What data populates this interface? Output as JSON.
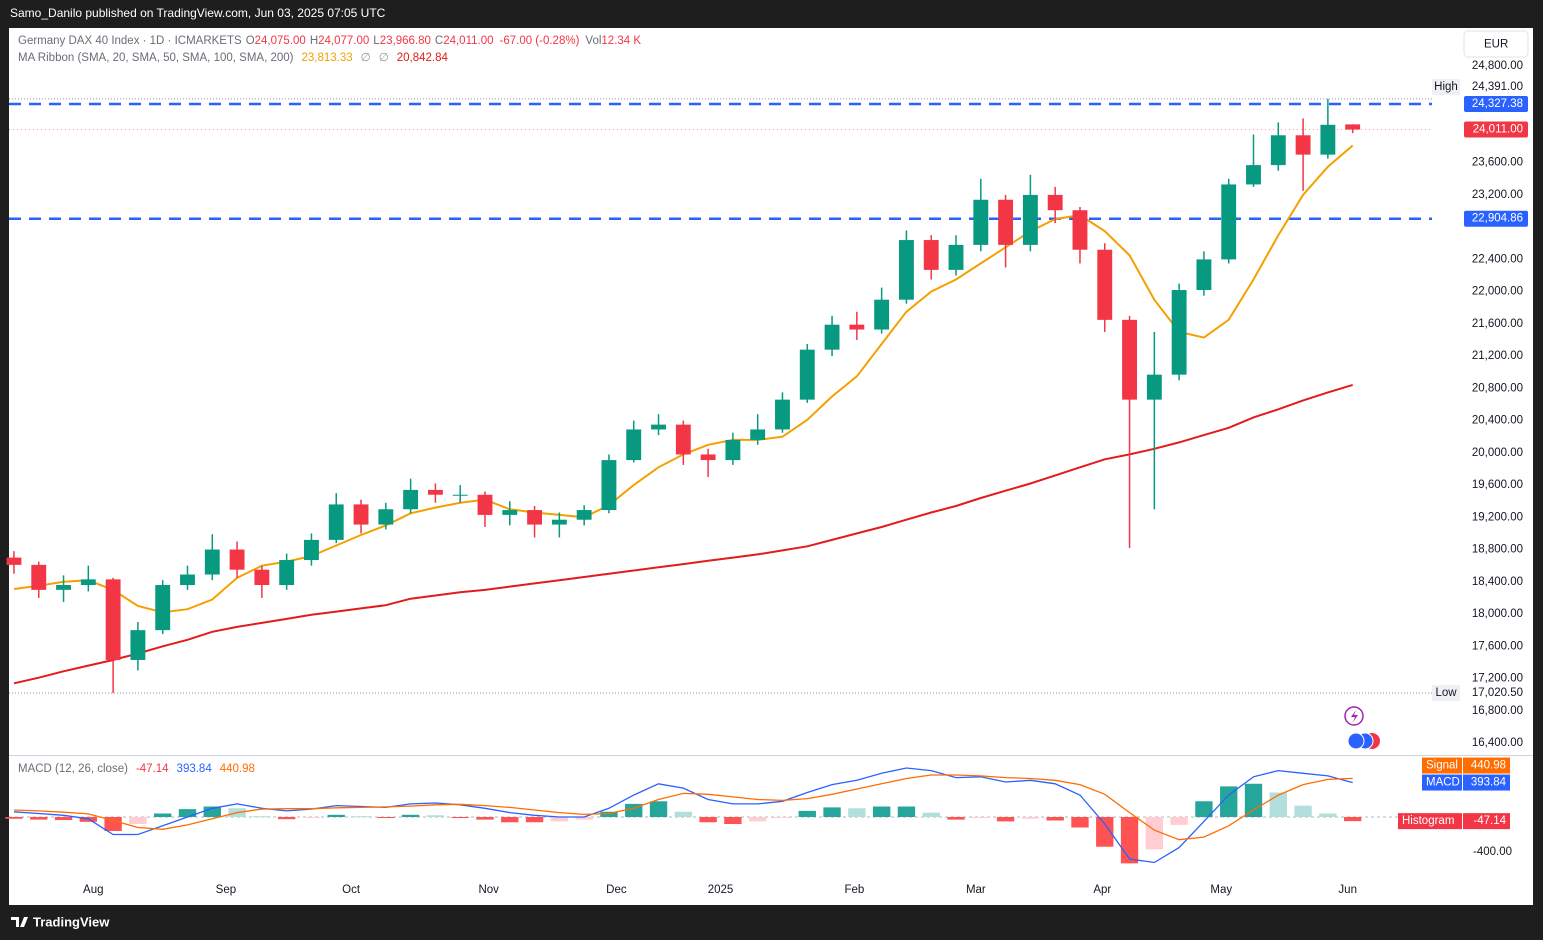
{
  "header": {
    "publisher": "Samo_Danilo published on TradingView.com, Jun 03, 2025 07:05 UTC",
    "footer": "TradingView",
    "currency": "EUR"
  },
  "chart_data": [
    {
      "type": "candlestick",
      "title": "Germany DAX 40 Index · 1D · ICMARKETS",
      "ohlc_legend": [
        {
          "key": "O",
          "value": "24,075.00"
        },
        {
          "key": "H",
          "value": "24,077.00"
        },
        {
          "key": "L",
          "value": "23,966.80"
        },
        {
          "key": "C",
          "value": "24,011.00"
        }
      ],
      "change": "-67.00 (-0.28%)",
      "volume": {
        "key": "Vol",
        "value": "12.34 K"
      },
      "up_color": "#089981",
      "down_color": "#f23645",
      "open": [
        18700,
        18610,
        18300,
        18360,
        18430,
        17430,
        17800,
        18360,
        18490,
        18800,
        18550,
        18360,
        18670,
        18920,
        19360,
        19110,
        19300,
        19540,
        19480,
        19480,
        19230,
        19290,
        19110,
        19170,
        19290,
        19910,
        20290,
        20350,
        19980,
        19910,
        20160,
        20290,
        20660,
        21280,
        21590,
        21530,
        21900,
        22640,
        22270,
        22580,
        23140,
        22580,
        23200,
        23010,
        22520,
        21650,
        20660,
        20970,
        22020,
        22400,
        23330,
        23570,
        23940,
        23700,
        24075
      ],
      "high": [
        18780,
        18650,
        18480,
        18600,
        18450,
        17900,
        18420,
        18600,
        18990,
        18900,
        18600,
        18750,
        19000,
        19500,
        19420,
        19380,
        19680,
        19620,
        19600,
        19520,
        19400,
        19340,
        19260,
        19350,
        19980,
        20400,
        20480,
        20400,
        20050,
        20250,
        20480,
        20750,
        21350,
        21700,
        21750,
        22050,
        22760,
        22700,
        22700,
        23400,
        23200,
        23450,
        23300,
        23050,
        22600,
        21700,
        21500,
        22100,
        22500,
        23400,
        23950,
        24100,
        24150,
        24391,
        24077
      ],
      "low": [
        18500,
        18200,
        18150,
        18280,
        17020,
        17300,
        17750,
        18300,
        18420,
        18450,
        18200,
        18300,
        18600,
        18880,
        19000,
        19050,
        19250,
        19380,
        19380,
        19080,
        19100,
        18950,
        18950,
        19100,
        19250,
        19880,
        20220,
        19850,
        19700,
        19850,
        20100,
        20250,
        20620,
        21200,
        21400,
        21480,
        21850,
        22150,
        22200,
        22500,
        22300,
        22500,
        22850,
        22350,
        21500,
        18820,
        19300,
        20900,
        21950,
        22350,
        23300,
        23500,
        23250,
        23650,
        23966.8
      ],
      "close": [
        18610,
        18300,
        18360,
        18430,
        17430,
        17800,
        18360,
        18490,
        18800,
        18550,
        18360,
        18670,
        18920,
        19360,
        19110,
        19300,
        19540,
        19480,
        19480,
        19230,
        19290,
        19110,
        19170,
        19290,
        19910,
        20290,
        20350,
        19980,
        19910,
        20160,
        20290,
        20660,
        21280,
        21590,
        21530,
        21900,
        22640,
        22270,
        22580,
        23140,
        22580,
        23200,
        23010,
        22520,
        21650,
        20660,
        20970,
        22020,
        22400,
        23330,
        23570,
        23940,
        23700,
        24070,
        24011
      ],
      "ma_ribbon": {
        "name": "MA Ribbon (SMA, 20, SMA, 50, SMA, 100, SMA, 200)",
        "value_labels": [
          "23,813.33",
          "∅",
          "∅",
          "20,842.84"
        ],
        "label_colors": [
          "#f5a000",
          "#9598a1",
          "#9598a1",
          "#e31b1b"
        ],
        "series": [
          {
            "color": "#f5a000",
            "values": [
              18310,
              18350,
              18400,
              18420,
              18300,
              18100,
              18020,
              18060,
              18180,
              18450,
              18600,
              18650,
              18720,
              18850,
              18980,
              19100,
              19250,
              19320,
              19380,
              19420,
              19300,
              19260,
              19230,
              19200,
              19350,
              19600,
              19820,
              19980,
              20100,
              20160,
              20160,
              20200,
              20410,
              20700,
              20950,
              21350,
              21750,
              22000,
              22150,
              22350,
              22550,
              22750,
              22900,
              22950,
              22750,
              22450,
              21900,
              21500,
              21430,
              21650,
              22150,
              22700,
              23200,
              23550,
              23813.33
            ]
          },
          {
            "color": "#e31b1b",
            "values": [
              17140,
              17210,
              17290,
              17360,
              17430,
              17510,
              17600,
              17680,
              17780,
              17840,
              17890,
              17940,
              17990,
              18030,
              18070,
              18110,
              18190,
              18230,
              18270,
              18300,
              18340,
              18380,
              18420,
              18460,
              18500,
              18540,
              18580,
              18620,
              18660,
              18700,
              18740,
              18790,
              18840,
              18920,
              19000,
              19080,
              19170,
              19260,
              19340,
              19440,
              19530,
              19620,
              19720,
              19820,
              19920,
              19980,
              20050,
              20130,
              20220,
              20310,
              20440,
              20540,
              20650,
              20750,
              20842.84
            ]
          }
        ]
      },
      "xlim": [
        -0.2,
        57.2
      ],
      "ylim": [
        16251,
        25271
      ],
      "yticks": [
        {
          "value": 24800,
          "label": "24,800.00"
        },
        {
          "value": 23600,
          "label": "23,600.00"
        },
        {
          "value": 23200,
          "label": "23,200.00"
        },
        {
          "value": 22400,
          "label": "22,400.00"
        },
        {
          "value": 22000,
          "label": "22,000.00"
        },
        {
          "value": 21600,
          "label": "21,600.00"
        },
        {
          "value": 21200,
          "label": "21,200.00"
        },
        {
          "value": 20800,
          "label": "20,800.00"
        },
        {
          "value": 20400,
          "label": "20,400.00"
        },
        {
          "value": 20000,
          "label": "20,000.00"
        },
        {
          "value": 19600,
          "label": "19,600.00"
        },
        {
          "value": 19200,
          "label": "19,200.00"
        },
        {
          "value": 18800,
          "label": "18,800.00"
        },
        {
          "value": 18400,
          "label": "18,400.00"
        },
        {
          "value": 18000,
          "label": "18,000.00"
        },
        {
          "value": 17600,
          "label": "17,600.00"
        },
        {
          "value": 17200,
          "label": "17,200.00"
        },
        {
          "value": 16800,
          "label": "16,800.00"
        },
        {
          "value": 16400,
          "label": "16,400.00"
        }
      ],
      "levels": [
        {
          "value": 24327.38,
          "label": "24,327.38",
          "color": "#2962ff"
        },
        {
          "value": 22904.86,
          "label": "22,904.86",
          "color": "#2962ff"
        }
      ],
      "last_price": {
        "value": 24011,
        "label": "24,011.00",
        "color": "#f23645"
      },
      "extremes": [
        {
          "name": "High",
          "value": 24391,
          "label": "24,391.00"
        },
        {
          "name": "Low",
          "value": 17020.5,
          "label": "17,020.50"
        }
      ]
    },
    {
      "type": "macd",
      "title": "MACD (12, 26, close)",
      "legend_value_labels": [
        "-47.14",
        "393.84",
        "440.98"
      ],
      "legend_colors": [
        "#f23645",
        "#2962ff",
        "#ff6d00"
      ],
      "hist_colors": {
        "up_rising": "#26a69a",
        "up_falling": "#b2dfdb",
        "down_falling": "#ff5252",
        "down_rising": "#ffcdd2"
      },
      "series": [
        {
          "name": "Histogram",
          "color": "#f23645",
          "value_label": "-47.14",
          "values": [
            -20,
            -30,
            -35,
            -55,
            -160,
            -80,
            40,
            90,
            120,
            100,
            10,
            -25,
            -5,
            25,
            10,
            -5,
            25,
            20,
            -5,
            -30,
            -60,
            -60,
            -50,
            -30,
            60,
            150,
            180,
            60,
            -60,
            -80,
            -50,
            -10,
            70,
            110,
            100,
            120,
            120,
            50,
            -30,
            -10,
            -50,
            -20,
            -40,
            -120,
            -340,
            -530,
            -370,
            -90,
            180,
            350,
            380,
            280,
            130,
            40,
            -47.14
          ]
        },
        {
          "name": "MACD",
          "color": "#2962ff",
          "value_label": "393.84",
          "values": [
            60,
            40,
            20,
            -20,
            -200,
            -200,
            -100,
            0,
            100,
            150,
            100,
            70,
            90,
            130,
            120,
            110,
            150,
            160,
            140,
            100,
            50,
            20,
            0,
            0,
            100,
            250,
            380,
            330,
            200,
            150,
            150,
            180,
            280,
            370,
            420,
            500,
            560,
            530,
            450,
            460,
            400,
            420,
            380,
            250,
            -80,
            -480,
            -520,
            -350,
            -50,
            250,
            460,
            530,
            500,
            470,
            393.84
          ]
        },
        {
          "name": "Signal",
          "color": "#ff6d00",
          "value_label": "440.98",
          "values": [
            80,
            70,
            55,
            35,
            -40,
            -120,
            -140,
            -90,
            -20,
            50,
            90,
            95,
            95,
            105,
            110,
            115,
            125,
            140,
            145,
            130,
            110,
            80,
            50,
            30,
            40,
            100,
            200,
            270,
            260,
            230,
            200,
            190,
            210,
            260,
            320,
            380,
            440,
            480,
            480,
            470,
            450,
            440,
            420,
            370,
            260,
            50,
            -150,
            -260,
            -230,
            -100,
            80,
            250,
            370,
            430,
            440.98
          ]
        }
      ],
      "ylim": [
        -663,
        686
      ],
      "yticks": [
        {
          "value": -400,
          "label": "-400.00"
        }
      ],
      "xticks": [
        {
          "value": 3.2,
          "label": "Aug"
        },
        {
          "value": 8.55,
          "label": "Sep"
        },
        {
          "value": 13.6,
          "label": "Oct"
        },
        {
          "value": 19.15,
          "label": "Nov"
        },
        {
          "value": 24.3,
          "label": "Dec"
        },
        {
          "value": 28.5,
          "label": "2025"
        },
        {
          "value": 33.9,
          "label": "Feb"
        },
        {
          "value": 38.8,
          "label": "Mar"
        },
        {
          "value": 43.9,
          "label": "Apr"
        },
        {
          "value": 48.7,
          "label": "May"
        },
        {
          "value": 53.8,
          "label": "Jun"
        }
      ]
    }
  ]
}
